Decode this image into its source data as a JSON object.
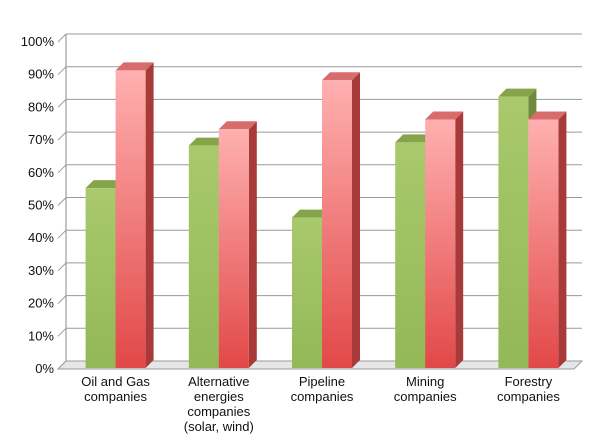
{
  "chart_data": {
    "type": "bar",
    "title": "",
    "xlabel": "",
    "ylabel": "",
    "ylim": [
      0,
      100
    ],
    "y_unit": "%",
    "y_ticks": [
      "0%",
      "10%",
      "20%",
      "30%",
      "40%",
      "50%",
      "60%",
      "70%",
      "80%",
      "90%",
      "100%"
    ],
    "grid": true,
    "legend": "none",
    "categories": [
      [
        "Oil and Gas",
        "companies"
      ],
      [
        "Alternative",
        "energies",
        "companies",
        "(solar, wind)"
      ],
      [
        "Pipeline",
        "companies"
      ],
      [
        "Mining",
        "companies"
      ],
      [
        "Forestry",
        "companies"
      ]
    ],
    "series": [
      {
        "color": "#9dc05f",
        "top_color": "#86a54a",
        "side_color": "#6f8a3a",
        "values": [
          55,
          68,
          46,
          69,
          83
        ]
      },
      {
        "color": "#f07a7a",
        "top_color": "#d86c6c",
        "side_color": "#a83a3a",
        "values": [
          91,
          73,
          88,
          76,
          76
        ]
      }
    ]
  }
}
